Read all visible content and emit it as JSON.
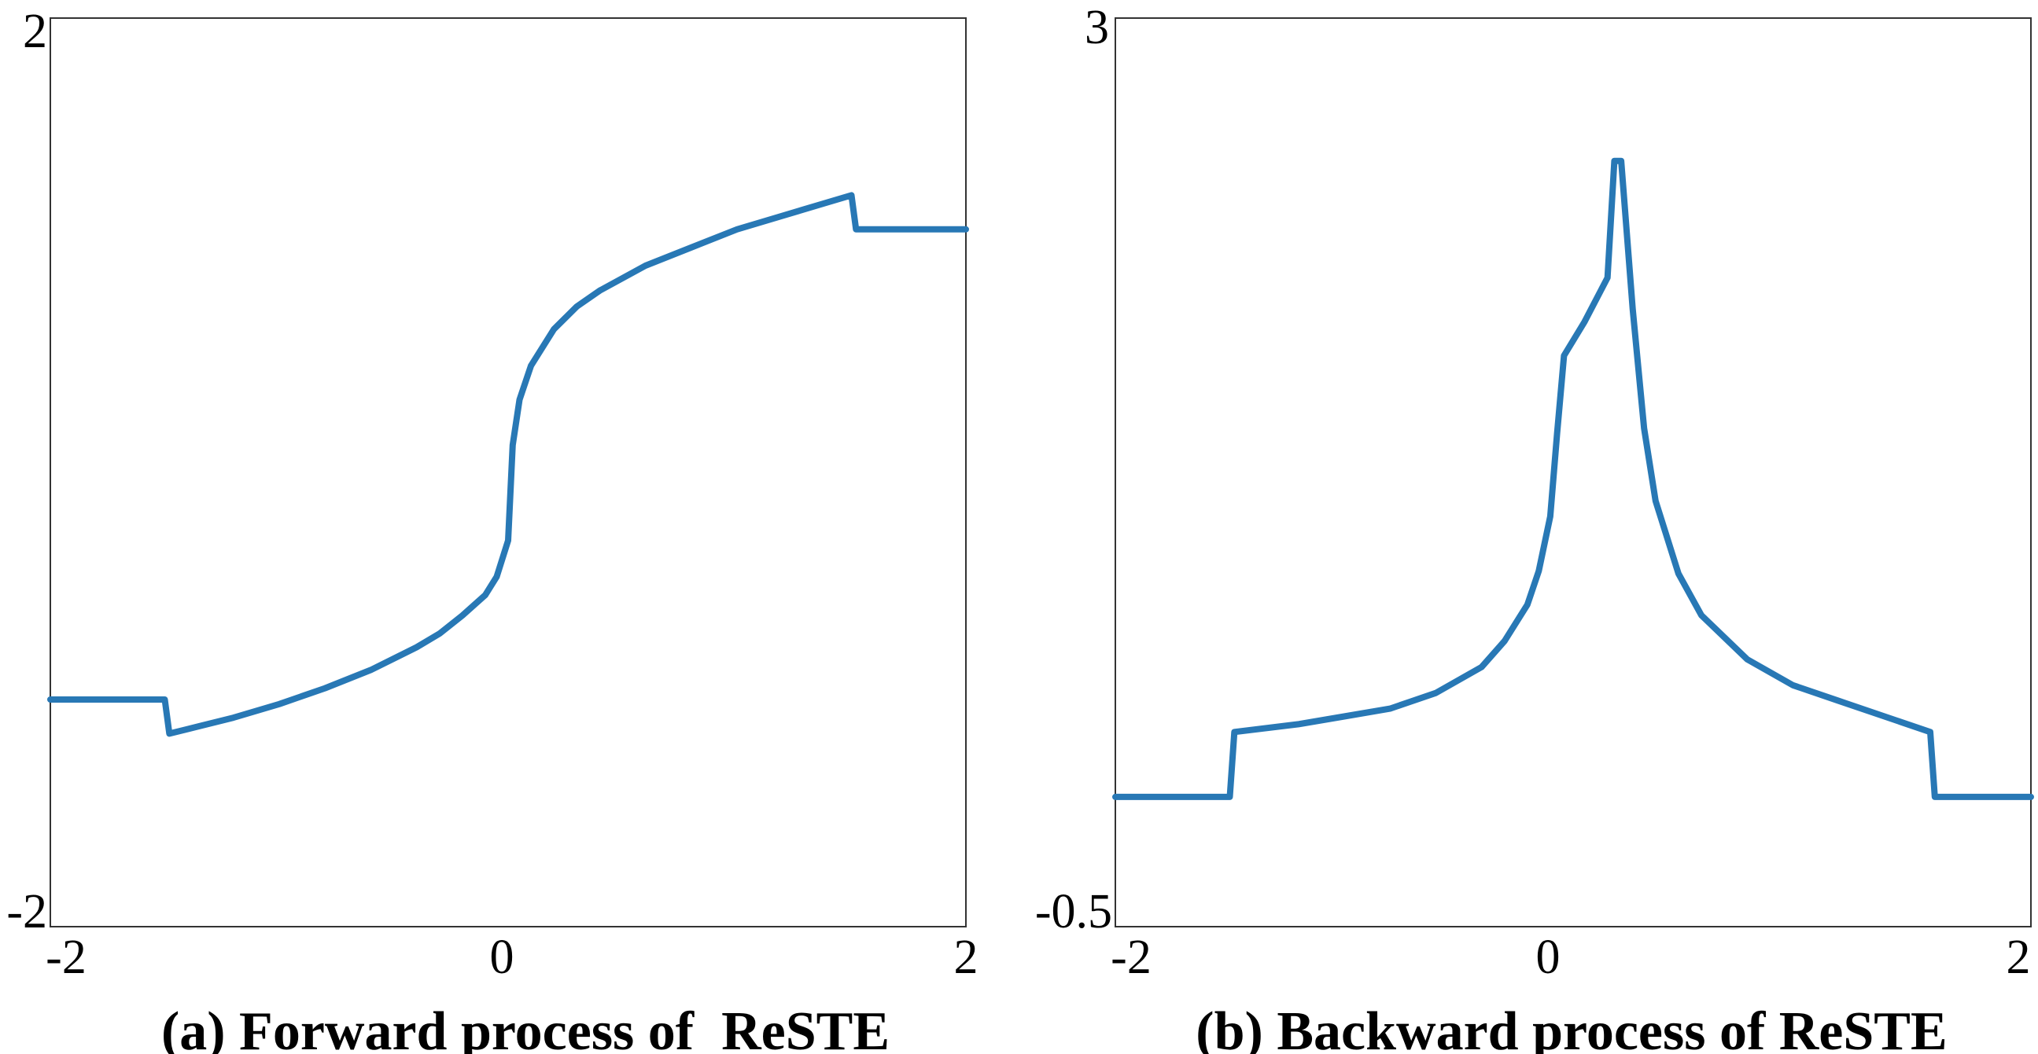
{
  "chart_data": [
    {
      "type": "line",
      "title": "(a) Forward process of  ReSTE",
      "xlabel": "",
      "ylabel": "",
      "xlim": [
        -2,
        2
      ],
      "ylim": [
        -2,
        2
      ],
      "xticks": [
        "-2",
        "0",
        "2"
      ],
      "yticks": [
        "2",
        "-2"
      ],
      "grid": false,
      "color": "#2878b5",
      "series": [
        {
          "x": [
            -2.0,
            -1.5,
            -1.48,
            -1.4,
            -1.2,
            -1.0,
            -0.8,
            -0.6,
            -0.4,
            -0.3,
            -0.2,
            -0.1,
            -0.05,
            0.0,
            0.02,
            0.05,
            0.1,
            0.2,
            0.3,
            0.4,
            0.6,
            0.8,
            1.0,
            1.2,
            1.4,
            1.5,
            1.52,
            2.0
          ],
          "y": [
            -1.0,
            -1.0,
            -1.15,
            -1.13,
            -1.08,
            -1.02,
            -0.95,
            -0.87,
            -0.77,
            -0.71,
            -0.63,
            -0.54,
            -0.46,
            -0.3,
            0.12,
            0.32,
            0.47,
            0.63,
            0.73,
            0.8,
            0.91,
            0.99,
            1.07,
            1.13,
            1.19,
            1.22,
            1.07,
            1.07
          ]
        }
      ]
    },
    {
      "type": "line",
      "title": "(b) Backward process of ReSTE",
      "xlabel": "",
      "ylabel": "",
      "xlim": [
        -2,
        2
      ],
      "ylim": [
        -0.5,
        3
      ],
      "xticks": [
        "-2",
        "0",
        "2"
      ],
      "yticks": [
        "3",
        "-0.5"
      ],
      "grid": false,
      "color": "#2878b5",
      "series": [
        {
          "x": [
            -2.0,
            -1.5,
            -1.48,
            -1.2,
            -1.0,
            -0.8,
            -0.6,
            -0.4,
            -0.3,
            -0.2,
            -0.15,
            -0.1,
            -0.07,
            -0.04,
            0.05,
            0.15,
            0.18,
            0.21,
            0.26,
            0.31,
            0.36,
            0.46,
            0.56,
            0.76,
            0.96,
            1.16,
            1.36,
            1.56,
            1.58,
            2.0
          ],
          "y": [
            0.0,
            0.0,
            0.25,
            0.28,
            0.31,
            0.34,
            0.4,
            0.5,
            0.6,
            0.74,
            0.87,
            1.08,
            1.4,
            1.7,
            1.83,
            2.0,
            2.45,
            2.45,
            1.88,
            1.42,
            1.14,
            0.86,
            0.7,
            0.53,
            0.43,
            0.37,
            0.31,
            0.25,
            0.0,
            0.0
          ]
        }
      ]
    }
  ]
}
